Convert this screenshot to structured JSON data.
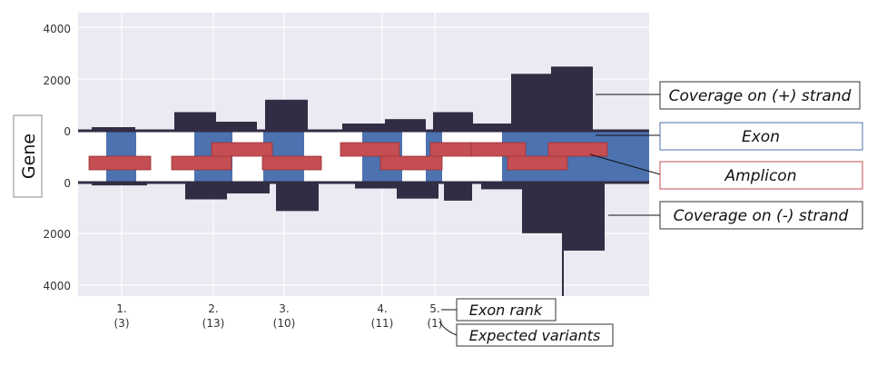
{
  "colors": {
    "panel": "#eaeaf2",
    "coverage": "#322d44",
    "exon": "#4c72b0",
    "amplicon": "#c44e52",
    "grid": "#ffffff"
  },
  "chart_data": {
    "type": "diagram",
    "ylabel": "Gene",
    "plus_axis": {
      "ticks": [
        "4000",
        "2000",
        "0"
      ],
      "values": [
        4000,
        2000,
        0
      ]
    },
    "minus_axis": {
      "ticks": [
        "0",
        "2000",
        "4000"
      ],
      "values": [
        0,
        2000,
        4000
      ]
    },
    "exon_labels": [
      {
        "rank": "1.",
        "variants": "(3)"
      },
      {
        "rank": "2.",
        "variants": "(13)"
      },
      {
        "rank": "3.",
        "variants": "(10)"
      },
      {
        "rank": "4.",
        "variants": "(11)"
      },
      {
        "rank": "5.",
        "variants": "(1)"
      }
    ],
    "plus_coverage_levels": [
      140,
      720,
      350,
      1200,
      280,
      450,
      720,
      280,
      2200,
      2480
    ],
    "minus_coverage_levels": [
      110,
      650,
      420,
      1100,
      230,
      620,
      700,
      260,
      1960,
      2630
    ],
    "legend": {
      "plus": "Coverage on (+) strand",
      "exon": "Exon",
      "amplicon": "Amplicon",
      "minus": "Coverage on (-) strand",
      "exon_rank": "Exon rank",
      "expected": "Expected variants"
    }
  }
}
